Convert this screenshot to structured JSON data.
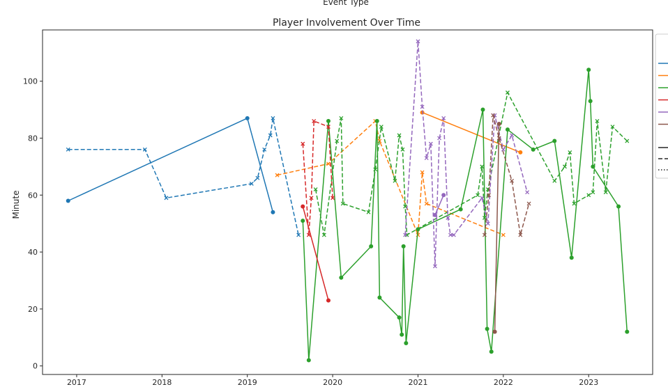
{
  "chart_data": {
    "type": "line",
    "title": "Player Involvement Over Time",
    "top_text": "Event Type",
    "xlabel": "",
    "ylabel": "Minute",
    "xlim": [
      2016.6,
      2023.75
    ],
    "ylim": [
      -3,
      118
    ],
    "yticks": [
      0,
      20,
      40,
      60,
      80,
      100
    ],
    "xticks": [
      2017,
      2018,
      2019,
      2020,
      2021,
      2022,
      2023
    ],
    "grid": false,
    "legend_position": "top-right",
    "colors": {
      "blue": "#1f77b4",
      "orange": "#ff7f0e",
      "green": "#2ca02c",
      "red": "#d62728",
      "purple": "#9467bd",
      "brown": "#8c564b"
    },
    "series": [
      {
        "color": "blue",
        "style": "solid",
        "marker": "circle",
        "x": [
          2016.9,
          2019.0,
          2019.3
        ],
        "y": [
          58,
          87,
          54
        ]
      },
      {
        "color": "blue",
        "style": "dashed",
        "marker": "x",
        "x": [
          2016.9,
          2017.8,
          2018.05,
          2019.05,
          2019.12,
          2019.2,
          2019.27,
          2019.3,
          2019.6
        ],
        "y": [
          76,
          76,
          59,
          64,
          66,
          76,
          81,
          87,
          46
        ]
      },
      {
        "color": "orange",
        "style": "solid",
        "marker": "circle",
        "x": [
          2021.05,
          2022.2
        ],
        "y": [
          89,
          75
        ]
      },
      {
        "color": "orange",
        "style": "dashed",
        "marker": "x",
        "x": [
          2019.35,
          2019.95,
          2020.5,
          2020.55,
          2021.0,
          2021.05,
          2021.1,
          2022.0
        ],
        "y": [
          67,
          71,
          86,
          79,
          46,
          68,
          57,
          46
        ]
      },
      {
        "color": "green",
        "style": "solid",
        "marker": "circle",
        "x": [
          2019.65,
          2019.72,
          2019.95,
          2020.1,
          2020.45,
          2020.52,
          2020.55,
          2020.78,
          2020.81,
          2020.83,
          2020.86,
          2021.0,
          2021.5,
          2021.76,
          2021.81,
          2021.86,
          2022.05,
          2022.35,
          2022.6,
          2022.8,
          2023.0,
          2023.02,
          2023.05,
          2023.35,
          2023.45
        ],
        "y": [
          51,
          2,
          86,
          31,
          42,
          86,
          24,
          17,
          11,
          42,
          8,
          48,
          55,
          90,
          13,
          5,
          83,
          76,
          79,
          38,
          104,
          93,
          70,
          56,
          12
        ]
      },
      {
        "color": "green",
        "style": "dashed",
        "marker": "x",
        "x": [
          2019.8,
          2019.9,
          2020.05,
          2020.1,
          2020.12,
          2020.42,
          2020.5,
          2020.57,
          2020.73,
          2020.78,
          2020.82,
          2020.85,
          2020.87,
          2021.7,
          2021.75,
          2021.78,
          2021.82,
          2022.05,
          2022.6,
          2022.72,
          2022.78,
          2022.83,
          2023.0,
          2023.05,
          2023.1,
          2023.2,
          2023.28,
          2023.45
        ],
        "y": [
          62,
          46,
          79,
          87,
          57,
          54,
          69,
          84,
          65,
          81,
          76,
          56,
          46,
          60,
          70,
          52,
          62,
          96,
          65,
          70,
          75,
          57,
          60,
          61,
          86,
          61,
          84,
          79
        ]
      },
      {
        "color": "red",
        "style": "solid",
        "marker": "circle",
        "x": [
          2019.65,
          2019.95
        ],
        "y": [
          56,
          23
        ]
      },
      {
        "color": "red",
        "style": "dashed",
        "marker": "x",
        "x": [
          2019.65,
          2019.72,
          2019.75,
          2019.78,
          2019.95,
          2020.0
        ],
        "y": [
          78,
          46,
          59,
          86,
          84,
          59
        ]
      },
      {
        "color": "purple",
        "style": "solid",
        "marker": "circle",
        "x": [
          2021.2,
          2021.3
        ],
        "y": [
          53,
          60
        ]
      },
      {
        "color": "purple",
        "style": "dashed",
        "marker": "x",
        "x": [
          2020.85,
          2021.0,
          2021.05,
          2021.1,
          2021.15,
          2021.2,
          2021.25,
          2021.3,
          2021.35,
          2021.38,
          2021.42,
          2021.75,
          2021.82,
          2021.9,
          2022.0,
          2022.1,
          2022.28
        ],
        "y": [
          46,
          114,
          91,
          73,
          78,
          35,
          80,
          87,
          52,
          46,
          46,
          59,
          50,
          88,
          76,
          81,
          61
        ]
      },
      {
        "color": "brown",
        "style": "solid",
        "marker": "circle",
        "x": [
          2021.9,
          2021.95
        ],
        "y": [
          12,
          85
        ]
      },
      {
        "color": "brown",
        "style": "dashed",
        "marker": "x",
        "x": [
          2021.78,
          2021.83,
          2021.88,
          2021.95,
          2022.1,
          2022.2,
          2022.3
        ],
        "y": [
          46,
          60,
          88,
          80,
          65,
          46,
          57
        ]
      }
    ],
    "legend_entries": [
      {
        "color": "blue",
        "style": "solid"
      },
      {
        "color": "orange",
        "style": "solid"
      },
      {
        "color": "green",
        "style": "solid"
      },
      {
        "color": "red",
        "style": "solid"
      },
      {
        "color": "purple",
        "style": "solid"
      },
      {
        "color": "brown",
        "style": "solid"
      },
      {
        "color": "black",
        "style": "solid"
      },
      {
        "color": "black",
        "style": "dashed"
      },
      {
        "color": "black",
        "style": "dotted"
      }
    ]
  }
}
